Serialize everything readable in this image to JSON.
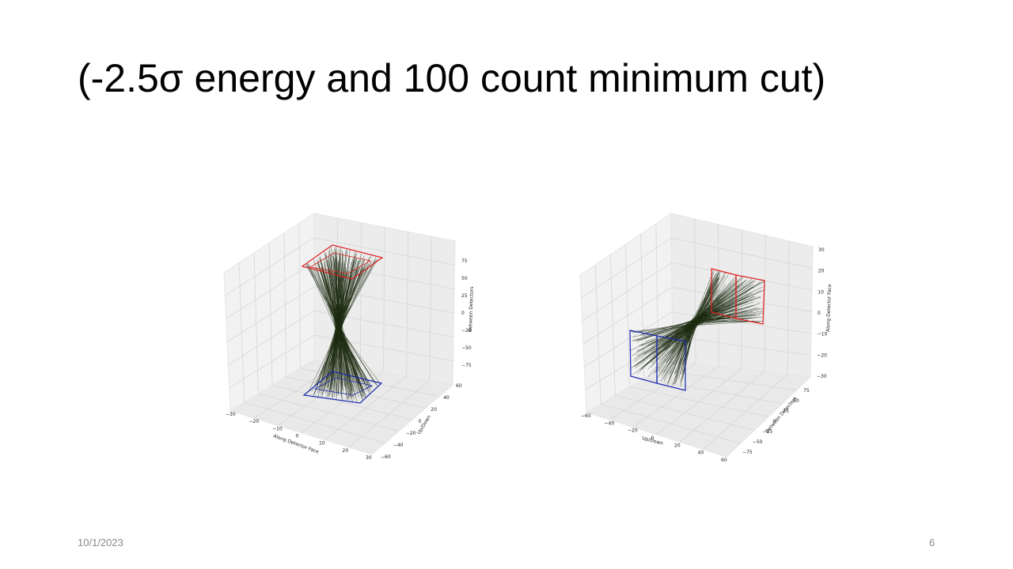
{
  "slide": {
    "title": "(-2.5σ energy and 100 count minimum cut)",
    "date": "10/1/2023",
    "page_number": "6"
  },
  "colors": {
    "detector_top": "#e02020",
    "detector_bottom": "#1a2ab0",
    "lines": "#1c2a10",
    "pane": "#f2f2f2",
    "grid": "#d6d6d6"
  },
  "chart_data": [
    {
      "type": "3d-line",
      "title": "",
      "x_axis": {
        "label": "Along Detector Face",
        "ticks": [
          "−30",
          "−20",
          "−10",
          "0",
          "10",
          "20",
          "30"
        ]
      },
      "y_axis": {
        "label": "Up/Down",
        "ticks": [
          "−60",
          "−40",
          "−20",
          "0",
          "20",
          "40",
          "60"
        ]
      },
      "z_axis": {
        "label": "Between Detectors",
        "ticks": [
          "75",
          "50",
          "25",
          "0",
          "−25",
          "−50",
          "−75"
        ]
      },
      "detectors": [
        {
          "name": "top",
          "color": "#e02020",
          "z": 80
        },
        {
          "name": "bottom",
          "color": "#1a2ab0",
          "z": -80
        }
      ],
      "line_count": 160
    },
    {
      "type": "3d-line",
      "title": "",
      "x_axis": {
        "label": "Up/Down",
        "ticks": [
          "−60",
          "−40",
          "−20",
          "0",
          "20",
          "40",
          "60"
        ]
      },
      "y_axis": {
        "label": "Between Detectors",
        "ticks": [
          "75",
          "50",
          "25",
          "0",
          "−25",
          "−50",
          "−75"
        ]
      },
      "z_axis": {
        "label": "Along Detector Face",
        "ticks": [
          "30",
          "20",
          "10",
          "0",
          "−10",
          "−20",
          "−30"
        ]
      },
      "detectors": [
        {
          "name": "right",
          "color": "#e02020"
        },
        {
          "name": "left",
          "color": "#1a2ab0"
        }
      ],
      "line_count": 160
    }
  ]
}
